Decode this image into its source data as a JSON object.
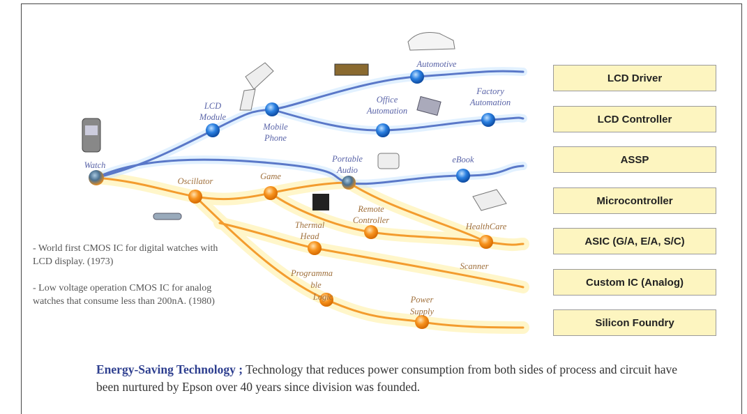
{
  "nodes": [
    {
      "label": [
        "Watch"
      ]
    },
    {
      "label": [
        "LCD",
        "Module"
      ]
    },
    {
      "label": [
        "Mobile",
        "Phone"
      ]
    },
    {
      "label": [
        "Automotive"
      ]
    },
    {
      "label": [
        "Office",
        "Automation"
      ]
    },
    {
      "label": [
        "Factory",
        "Automation"
      ]
    },
    {
      "label": [
        "Portable",
        "Audio"
      ]
    },
    {
      "label": [
        "eBook"
      ]
    },
    {
      "label": [
        "Oscillator"
      ]
    },
    {
      "label": [
        "Game"
      ]
    },
    {
      "label": [
        "Remote",
        "Controller"
      ]
    },
    {
      "label": [
        "HealthCare"
      ]
    },
    {
      "label": [
        "Thermal",
        "Head"
      ]
    },
    {
      "label": [
        "Scanner"
      ]
    },
    {
      "label": [
        "Programma",
        "ble",
        "Logic"
      ]
    },
    {
      "label": [
        "Power",
        "Supply"
      ]
    }
  ],
  "categories": [
    "LCD Driver",
    "LCD Controller",
    "ASSP",
    "Microcontroller",
    "ASIC (G/A, E/A, S/C)",
    "Custom IC (Analog)",
    "Silicon Foundry"
  ],
  "notes": [
    "- World first CMOS IC for digital watches with LCD display. (1973)",
    "- Low voltage operation CMOS IC for analog watches that consume less than 200nA. (1980)"
  ],
  "caption": {
    "lead": "Energy-Saving Technology ;",
    "text": "Technology that reduces power consumption from both sides of process and circuit have been nurtured by Epson over 40 years since division was founded."
  }
}
